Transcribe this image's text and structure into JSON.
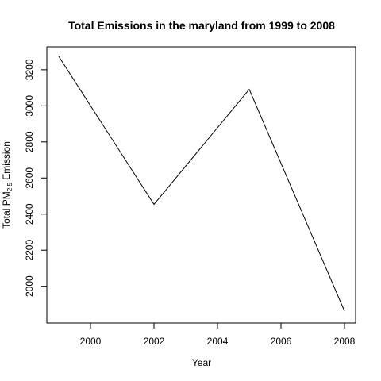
{
  "chart_data": {
    "type": "line",
    "title": "Total Emissions in the maryland from 1999 to 2008",
    "xlabel": "Year",
    "ylabel": {
      "prefix": "Total PM",
      "subscript": "2.5",
      "suffix": " Emission"
    },
    "x": [
      1999,
      2002,
      2005,
      2008
    ],
    "series": [
      {
        "values": [
          3274.18,
          2453.92,
          3091.35,
          1862.28
        ]
      }
    ],
    "xlim": [
      1999,
      2008
    ],
    "ylim": [
      1862.28,
      3274.18
    ],
    "x_ticks": [
      2000,
      2002,
      2004,
      2006,
      2008
    ],
    "y_ticks": [
      2000,
      2200,
      2400,
      2600,
      2800,
      3000,
      3200
    ],
    "grid": false,
    "line_color": "#000000"
  }
}
